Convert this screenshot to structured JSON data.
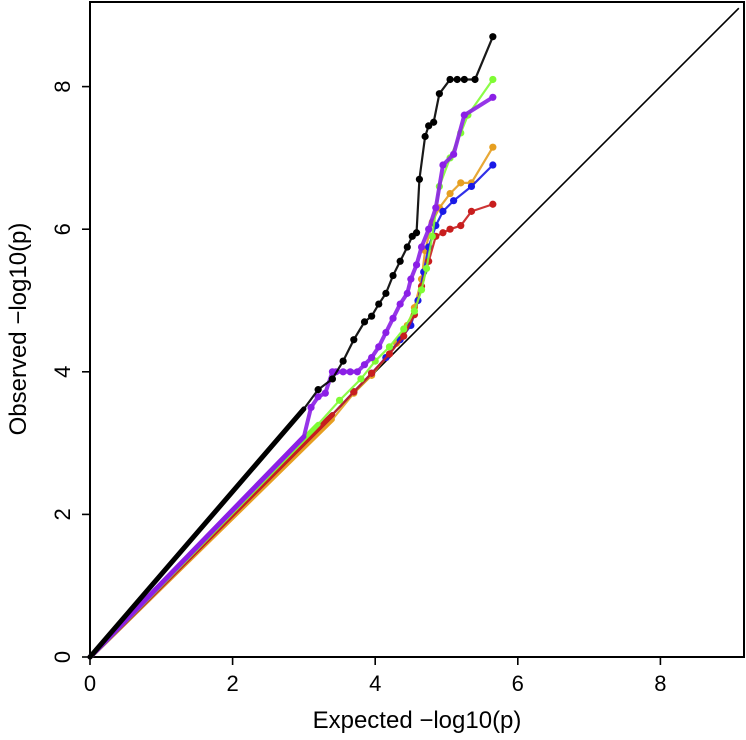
{
  "chart_data": {
    "type": "scatter",
    "title": "",
    "xlabel": "Expected −log10(p)",
    "ylabel": "Observed −log10(p)",
    "xlim": [
      0,
      9.1
    ],
    "ylim": [
      0,
      9.1
    ],
    "x_ticks": [
      "0",
      "2",
      "4",
      "6",
      "8"
    ],
    "y_ticks": [
      "0",
      "2",
      "4",
      "6",
      "8"
    ],
    "grid": false,
    "legend": "none",
    "reference_line": {
      "from": [
        0,
        0
      ],
      "to": [
        9.1,
        9.1
      ],
      "color": "#000000"
    },
    "series": [
      {
        "color": "#000000",
        "dense_slope": 1.16,
        "dense_until": 3.0,
        "x": [
          3.2,
          3.4,
          3.55,
          3.7,
          3.85,
          3.95,
          4.05,
          4.15,
          4.25,
          4.35,
          4.45,
          4.52,
          4.58,
          4.62,
          4.7,
          4.75,
          4.82,
          4.9,
          5.05,
          5.15,
          5.25,
          5.4,
          5.65
        ],
        "y": [
          3.75,
          3.9,
          4.15,
          4.45,
          4.7,
          4.78,
          4.95,
          5.1,
          5.35,
          5.55,
          5.75,
          5.9,
          5.95,
          6.7,
          7.3,
          7.45,
          7.5,
          7.9,
          8.1,
          8.1,
          8.1,
          8.1,
          8.7
        ]
      },
      {
        "color": "#8b1fe6",
        "dense_slope": 1.03,
        "dense_until": 3.0,
        "x": [
          3.1,
          3.2,
          3.3,
          3.4,
          3.45,
          3.55,
          3.65,
          3.75,
          3.85,
          3.95,
          4.05,
          4.15,
          4.25,
          4.35,
          4.45,
          4.5,
          4.58,
          4.65,
          4.75,
          4.85,
          4.95,
          5.1,
          5.25,
          5.65
        ],
        "y": [
          3.5,
          3.65,
          3.7,
          4.0,
          4.0,
          4.0,
          4.0,
          4.0,
          4.1,
          4.2,
          4.35,
          4.55,
          4.75,
          4.95,
          5.1,
          5.3,
          5.5,
          5.75,
          6.0,
          6.3,
          6.9,
          7.05,
          7.6,
          7.85
        ]
      },
      {
        "color": "#7ffc34",
        "dense_slope": 1.02,
        "dense_until": 3.2,
        "x": [
          3.5,
          3.8,
          4.0,
          4.2,
          4.4,
          4.55,
          4.65,
          4.72,
          4.8,
          4.9,
          5.05,
          5.2,
          5.3,
          5.65
        ],
        "y": [
          3.6,
          3.9,
          4.15,
          4.35,
          4.6,
          4.85,
          5.15,
          5.45,
          5.9,
          6.6,
          7.0,
          7.35,
          7.6,
          8.1
        ]
      },
      {
        "color": "#e69f20",
        "dense_slope": 0.98,
        "dense_until": 3.4,
        "x": [
          3.7,
          3.95,
          4.15,
          4.3,
          4.45,
          4.55,
          4.65,
          4.7,
          4.8,
          4.9,
          5.05,
          5.2,
          5.35,
          5.65
        ],
        "y": [
          3.7,
          3.95,
          4.2,
          4.4,
          4.65,
          4.9,
          5.3,
          5.7,
          6.1,
          6.3,
          6.5,
          6.65,
          6.65,
          7.15
        ]
      },
      {
        "color": "#1a1ae6",
        "dense_slope": 1.0,
        "dense_until": 3.4,
        "x": [
          3.7,
          3.95,
          4.15,
          4.35,
          4.5,
          4.6,
          4.68,
          4.75,
          4.85,
          4.95,
          5.1,
          5.35,
          5.65
        ],
        "y": [
          3.72,
          3.98,
          4.2,
          4.45,
          4.65,
          5.0,
          5.4,
          5.75,
          6.05,
          6.25,
          6.4,
          6.6,
          6.9
        ]
      },
      {
        "color": "#c81e1e",
        "dense_slope": 1.0,
        "dense_until": 3.4,
        "x": [
          3.7,
          3.95,
          4.2,
          4.4,
          4.55,
          4.65,
          4.75,
          4.85,
          4.95,
          5.05,
          5.2,
          5.35,
          5.65
        ],
        "y": [
          3.72,
          3.98,
          4.25,
          4.5,
          4.8,
          5.2,
          5.55,
          5.9,
          5.95,
          6.0,
          6.05,
          6.25,
          6.35
        ]
      }
    ]
  }
}
